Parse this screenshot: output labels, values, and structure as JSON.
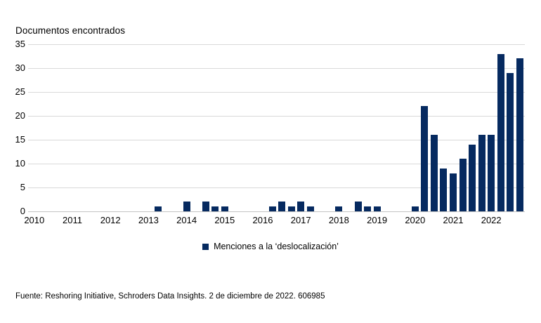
{
  "chart": {
    "title": "Documentos encontrados",
    "legend": {
      "label": "Menciones a la ‘deslocalización’"
    },
    "footer": "Fuente: Reshoring Initiative, Schroders Data Insights. 2 de diciembre de 2022. 606985",
    "colors": {
      "bar": "#062a60",
      "gridline": "#d9d9d9",
      "axis_line": "#c3c3c3",
      "text": "#000000"
    }
  },
  "chart_data": {
    "type": "bar",
    "title": "Documentos encontrados",
    "xlabel": "",
    "ylabel": "Documentos encontrados",
    "ylim": [
      0,
      35
    ],
    "yticks": [
      0,
      5,
      10,
      15,
      20,
      25,
      30,
      35
    ],
    "grid": "horizontal-only",
    "legend_position": "bottom-center",
    "bar_color": "#062a60",
    "series_name": "Menciones a la ‘deslocalización’",
    "x_year_labels": [
      "2010",
      "2011",
      "2012",
      "2013",
      "2014",
      "2015",
      "2016",
      "2017",
      "2018",
      "2019",
      "2020",
      "2021",
      "2022"
    ],
    "quarters_per_year": 4,
    "categories": [
      "2010 T1",
      "2010 T2",
      "2010 T3",
      "2010 T4",
      "2011 T1",
      "2011 T2",
      "2011 T3",
      "2011 T4",
      "2012 T1",
      "2012 T2",
      "2012 T3",
      "2012 T4",
      "2013 T1",
      "2013 T2",
      "2013 T3",
      "2013 T4",
      "2014 T1",
      "2014 T2",
      "2014 T3",
      "2014 T4",
      "2015 T1",
      "2015 T2",
      "2015 T3",
      "2015 T4",
      "2016 T1",
      "2016 T2",
      "2016 T3",
      "2016 T4",
      "2017 T1",
      "2017 T2",
      "2017 T3",
      "2017 T4",
      "2018 T1",
      "2018 T2",
      "2018 T3",
      "2018 T4",
      "2019 T1",
      "2019 T2",
      "2019 T3",
      "2019 T4",
      "2020 T1",
      "2020 T2",
      "2020 T3",
      "2020 T4",
      "2021 T1",
      "2021 T2",
      "2021 T3",
      "2021 T4",
      "2022 T1",
      "2022 T2",
      "2022 T3",
      "2022 T4"
    ],
    "values": [
      0,
      0,
      0,
      0,
      0,
      0,
      0,
      0,
      0,
      0,
      0,
      0,
      0,
      1,
      0,
      0,
      2,
      0,
      2,
      1,
      1,
      0,
      0,
      0,
      0,
      1,
      2,
      1,
      2,
      1,
      0,
      0,
      1,
      0,
      2,
      1,
      1,
      0,
      0,
      0,
      1,
      22,
      16,
      9,
      8,
      11,
      14,
      16,
      16,
      33,
      29,
      32
    ]
  }
}
